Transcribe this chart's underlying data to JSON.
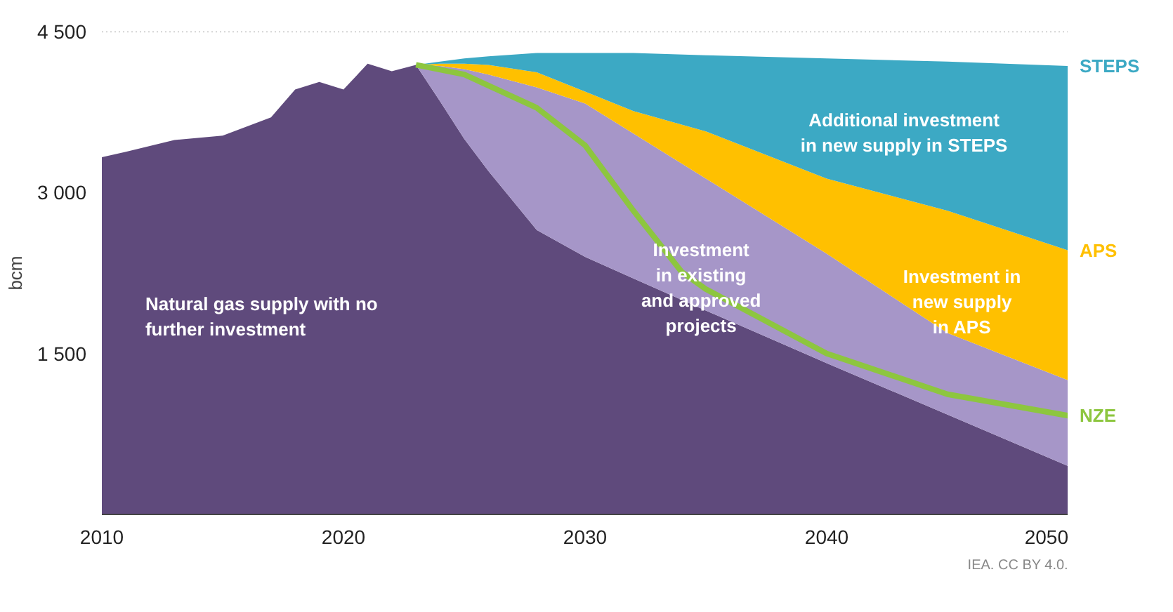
{
  "chart_data": {
    "type": "area",
    "stacked": true,
    "ylabel": "bcm",
    "x": [
      2010,
      2011,
      2013,
      2015,
      2017,
      2018,
      2019,
      2020,
      2021,
      2022,
      2023,
      2024,
      2025,
      2026,
      2028,
      2030,
      2032,
      2035,
      2040,
      2045,
      2050
    ],
    "series": [
      {
        "color": "#5f4a7c",
        "values": [
          3330,
          3380,
          3490,
          3530,
          3700,
          3960,
          4030,
          3960,
          4200,
          4130,
          4190,
          3850,
          3500,
          3200,
          2650,
          2400,
          2200,
          1900,
          1410,
          930,
          450
        ]
      },
      {
        "color": "#a696c8",
        "values": [
          0,
          0,
          0,
          0,
          0,
          0,
          0,
          0,
          0,
          0,
          0,
          330,
          650,
          900,
          1330,
          1430,
          1350,
          1230,
          1020,
          760,
          800
        ]
      },
      {
        "name": "APS",
        "color": "#ffc000",
        "values": [
          0,
          0,
          0,
          0,
          0,
          0,
          0,
          0,
          0,
          0,
          0,
          20,
          50,
          90,
          140,
          110,
          210,
          440,
          700,
          1140,
          1210
        ]
      },
      {
        "name": "STEPS",
        "color": "#3ca9c4",
        "values": [
          0,
          0,
          0,
          0,
          0,
          0,
          0,
          0,
          0,
          0,
          0,
          20,
          50,
          80,
          180,
          360,
          540,
          710,
          1120,
          1390,
          1720
        ]
      },
      {
        "type": "line",
        "name": "NZE",
        "color": "#8dc63f",
        "x": [
          2023,
          2025,
          2028,
          2030,
          2032,
          2034,
          2035,
          2040,
          2045,
          2050
        ],
        "values": [
          4190,
          4100,
          3790,
          3440,
          2830,
          2260,
          2100,
          1500,
          1120,
          920
        ]
      }
    ],
    "xlim": [
      2010,
      2050
    ],
    "ylim": [
      0,
      4500
    ],
    "xticks": [
      2010,
      2020,
      2030,
      2040,
      2050
    ],
    "yticks": [
      {
        "value": 1500,
        "label": "1 500"
      },
      {
        "value": 3000,
        "label": "3 000"
      },
      {
        "value": 4500,
        "label": "4 500"
      }
    ],
    "ref_lines": [
      {
        "axis": "y",
        "value": 4500,
        "line_style": "dotted",
        "color": "#999999"
      }
    ],
    "annotations": [
      "Natural gas supply with no\nfurther investment",
      "Investment\nin existing\nand approved\nprojects",
      "Additional investment\nin new supply in STEPS",
      "Investment in\nnew supply\nin APS",
      "IEA. CC BY 4.0."
    ]
  }
}
